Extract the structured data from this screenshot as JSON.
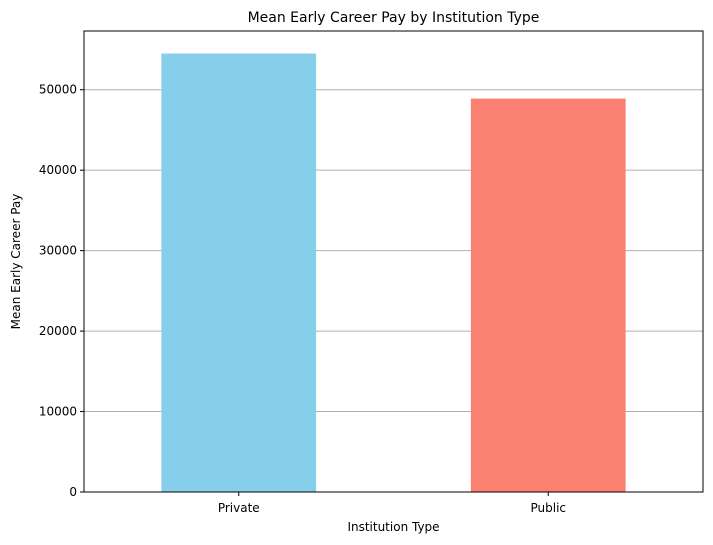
{
  "chart_data": {
    "type": "bar",
    "title": "Mean Early Career Pay by Institution Type",
    "xlabel": "Institution Type",
    "ylabel": "Mean Early Career Pay",
    "categories": [
      "Private",
      "Public"
    ],
    "values": [
      54500,
      48900
    ],
    "colors": [
      "#87ceeb",
      "#fa8072"
    ],
    "ylim": [
      0,
      57300
    ],
    "yticks": [
      0,
      10000,
      20000,
      30000,
      40000,
      50000
    ],
    "grid": "y"
  }
}
